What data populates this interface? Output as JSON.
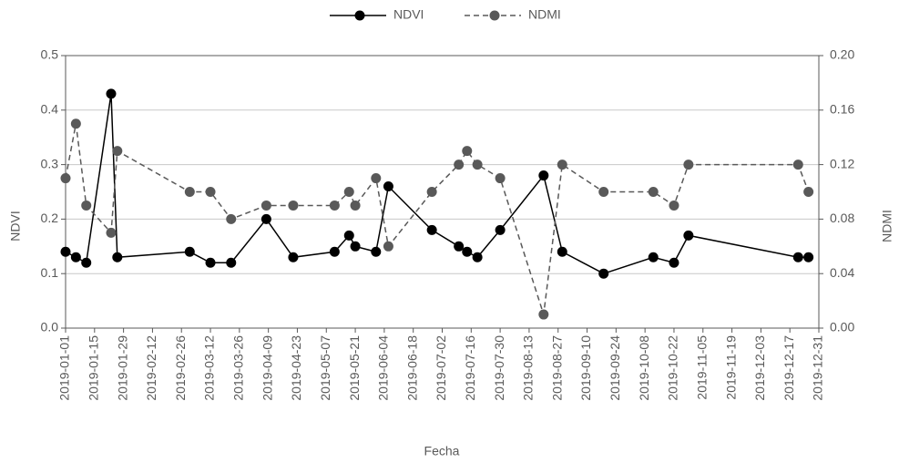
{
  "chart_data": {
    "type": "line",
    "x_label": "Fecha",
    "y_label": "NDVI",
    "y2_label": "NDMI",
    "x": [
      "2019-01-01",
      "2019-01-06",
      "2019-01-11",
      "2019-01-23",
      "2019-01-26",
      "2019-03-02",
      "2019-03-12",
      "2019-03-22",
      "2019-04-08",
      "2019-04-21",
      "2019-05-11",
      "2019-05-18",
      "2019-05-21",
      "2019-05-31",
      "2019-06-06",
      "2019-06-27",
      "2019-07-10",
      "2019-07-14",
      "2019-07-19",
      "2019-07-30",
      "2019-08-20",
      "2019-08-29",
      "2019-09-18",
      "2019-10-12",
      "2019-10-22",
      "2019-10-29",
      "2019-12-21",
      "2019-12-26"
    ],
    "series": [
      {
        "name": "NDVI",
        "color": "#000000",
        "dash": false,
        "axis": "y",
        "values": [
          0.14,
          0.13,
          0.12,
          0.43,
          0.13,
          0.14,
          0.12,
          0.12,
          0.2,
          0.13,
          0.14,
          0.17,
          0.15,
          0.14,
          0.26,
          0.18,
          0.15,
          0.14,
          0.13,
          0.18,
          0.28,
          0.14,
          0.1,
          0.13,
          0.12,
          0.17,
          0.13,
          0.13
        ]
      },
      {
        "name": "NDMI",
        "color": "#595959",
        "dash": true,
        "axis": "y2",
        "values": [
          0.11,
          0.15,
          0.09,
          0.07,
          0.13,
          0.1,
          0.1,
          0.08,
          0.09,
          0.09,
          0.09,
          0.1,
          0.09,
          0.11,
          0.06,
          0.1,
          0.12,
          0.13,
          0.12,
          0.11,
          0.01,
          0.12,
          0.1,
          0.1,
          0.09,
          0.12,
          0.12,
          0.1
        ]
      }
    ],
    "xlim": [
      "2019-01-01",
      "2019-12-31"
    ],
    "xticks": [
      "2019-01-01",
      "2019-01-15",
      "2019-01-29",
      "2019-02-12",
      "2019-02-26",
      "2019-03-12",
      "2019-03-26",
      "2019-04-09",
      "2019-04-23",
      "2019-05-07",
      "2019-05-21",
      "2019-06-04",
      "2019-06-18",
      "2019-07-02",
      "2019-07-16",
      "2019-07-30",
      "2019-08-13",
      "2019-08-27",
      "2019-09-10",
      "2019-09-24",
      "2019-10-08",
      "2019-10-22",
      "2019-11-05",
      "2019-11-19",
      "2019-12-03",
      "2019-12-17",
      "2019-12-31"
    ],
    "ylim": [
      0,
      0.5
    ],
    "yticks": [
      {
        "value": 0,
        "label": "0.0"
      },
      0.1,
      0.2,
      0.3,
      0.4,
      0.5
    ],
    "y2lim": [
      0,
      0.2
    ],
    "y2ticks": [
      {
        "value": 0,
        "label": "0.00"
      },
      0.04,
      0.08,
      0.12,
      0.16,
      {
        "value": 0.2,
        "label": "0.20"
      }
    ],
    "grid": true,
    "legend": "top"
  }
}
